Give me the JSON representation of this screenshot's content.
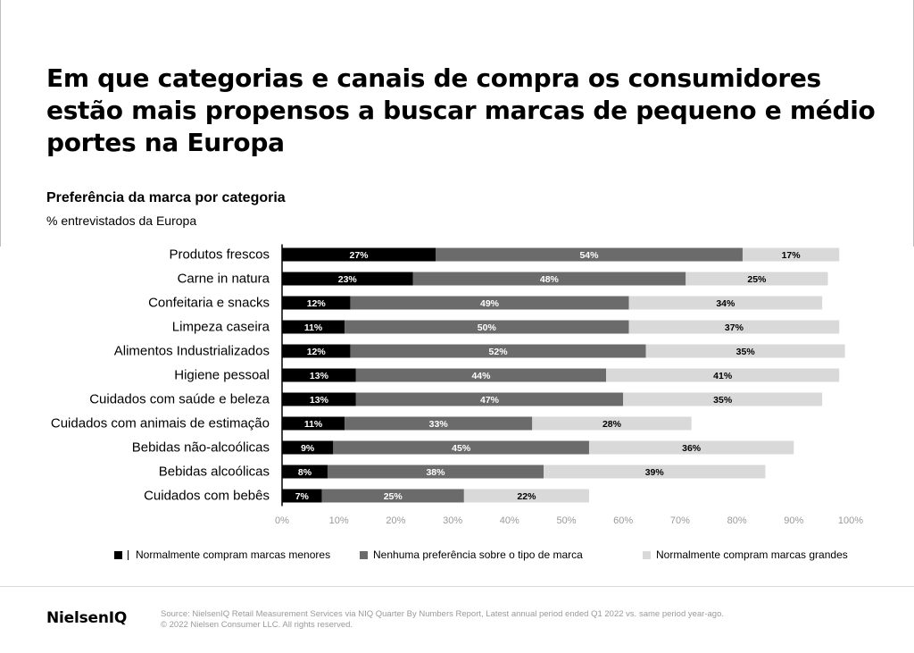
{
  "header": {
    "title": "Em que categorias e canais de compra os consumidores estão mais propensos a buscar marcas de pequeno e médio portes na Europa",
    "subtitle": "Preferência da marca por categoria",
    "unit": "% entrevistados da Europa"
  },
  "chart_data": {
    "type": "bar",
    "orientation": "horizontal",
    "stacked": true,
    "categories": [
      "Produtos frescos",
      "Carne in natura",
      "Confeitaria e snacks",
      "Limpeza caseira",
      "Alimentos Industrializados",
      "Higiene pessoal",
      "Cuidados com saúde e beleza",
      "Cuidados com animais de estimação",
      "Bebidas não-alcoólicas",
      "Bebidas alcoólicas",
      "Cuidados com bebês"
    ],
    "series": [
      {
        "name": "Normalmente compram marcas menores",
        "color": "#000000",
        "label_color": "#ffffff",
        "values": [
          27,
          23,
          12,
          11,
          12,
          13,
          13,
          11,
          9,
          8,
          7
        ]
      },
      {
        "name": "Nenhuma preferência sobre o tipo de marca",
        "color": "#6b6b6b",
        "label_color": "#ffffff",
        "values": [
          54,
          48,
          49,
          50,
          52,
          44,
          47,
          33,
          45,
          38,
          25
        ]
      },
      {
        "name": "Normalmente compram marcas grandes",
        "color": "#d9d9d9",
        "label_color": "#000000",
        "values": [
          17,
          25,
          34,
          37,
          35,
          41,
          35,
          28,
          36,
          39,
          22
        ]
      }
    ],
    "xlim": [
      0,
      100
    ],
    "xticks": [
      "0%",
      "10%",
      "20%",
      "30%",
      "40%",
      "50%",
      "60%",
      "70%",
      "80%",
      "90%",
      "100%"
    ],
    "legend_position": "bottom",
    "grid": false
  },
  "legend": {
    "items": [
      {
        "label": "Normalmente compram marcas menores",
        "color": "#000000"
      },
      {
        "label": "Nenhuma preferência sobre o tipo de marca",
        "color": "#6b6b6b"
      },
      {
        "label": "Normalmente compram marcas grandes",
        "color": "#d9d9d9"
      }
    ]
  },
  "footer": {
    "brand": "NielsenIQ",
    "source_line1": "Source: NielsenIQ Retail Measurement Services via NIQ Quarter By Numbers Report, Latest annual period ended Q1 2022 vs. same period year-ago.",
    "source_line2": "© 2022 Nielsen Consumer LLC. All rights reserved."
  }
}
